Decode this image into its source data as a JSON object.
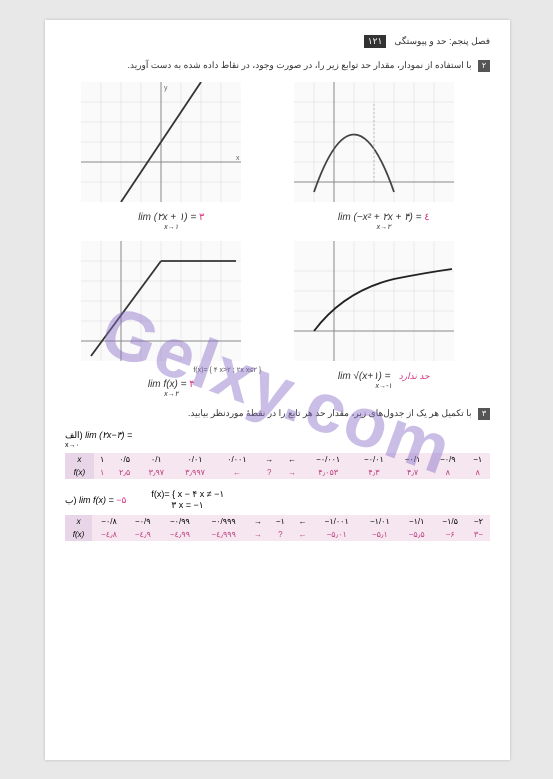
{
  "header": {
    "chapter": "فصل پنجم: حد و پیوستگی",
    "pageNum": "۱۲۱"
  },
  "q2": {
    "num": "۲",
    "text": "با استفاده از نمودار، مقدار حد توابع زیر را، در صورت وجود، در نقاط داده شده به دست آورید."
  },
  "chart1": {
    "formula": "lim (۲x + ۱) =",
    "sub": "x→۱",
    "answer": "۳",
    "xlim": [
      -3,
      3
    ],
    "ylim": [
      -3,
      4
    ],
    "line_color": "#444",
    "grid_color": "#d0d0d0"
  },
  "chart2": {
    "formula": "lim (−x² + ۲x + ۴) =",
    "sub": "x→۲",
    "answer": "٤",
    "xlim": [
      -2,
      5
    ],
    "ylim": [
      -2,
      5
    ],
    "curve_color": "#555",
    "grid_color": "#d0d0d0"
  },
  "chart3": {
    "formula": "lim f(x) =",
    "sub": "x→۲",
    "answer": "۴",
    "note": "f(x)= { ۴  x>۲ ; ۲x  x≤۲ }",
    "xlim": [
      -2,
      5
    ],
    "ylim": [
      -2,
      5
    ],
    "grid_color": "#d0d0d0"
  },
  "chart4": {
    "formula": "lim √(x+۱) =",
    "sub": "x→-۱",
    "answer": "حد ندارد",
    "xlim": [
      -2,
      6
    ],
    "ylim": [
      -1,
      3
    ],
    "curve_color": "#222",
    "grid_color": "#d0d0d0"
  },
  "q3": {
    "num": "۳",
    "text": "با تکمیل هر یک از جدول‌های زیر، مقدار حد هر تابع را در نقطهٔ موردنظر بیابید."
  },
  "table1": {
    "label_formula": "lim (۲x−۳) =",
    "label_sub": "x→۰",
    "label_part": "الف)",
    "row_x": [
      "x",
      "۱",
      "۰/۵",
      "۰/۱",
      "۰/۰۱",
      "۰/۰۰۱",
      "→",
      "←",
      "−۰/۰۰۱",
      "−۰/۰۱",
      "−۰/۱",
      "−۰/۹",
      "−۱"
    ],
    "row_fx": [
      "f(x)",
      "۱",
      "۲٫۵",
      "۳٫۹۷",
      "۳٫۹۹۷",
      "←",
      "?",
      "→",
      "۴٫۰۵۳",
      "۴٫۳",
      "۴٫۷",
      "∧",
      "∧"
    ]
  },
  "table2": {
    "label_formula": "lim f(x) =",
    "label_sub": "x→-۱",
    "label_answer": "−۵",
    "label_part": "ب)",
    "piecewise_top": "x − ۴    x ≠ −۱",
    "piecewise_bot": "۳         x = −۱",
    "row_x": [
      "x",
      "−۰/۸",
      "−۰/۹",
      "−۰/۹۹",
      "−۰/۹۹۹",
      "→",
      "−۱",
      "←",
      "−۱/۰۰۱",
      "−۱/۰۱",
      "−۱/۱",
      "−۱/۵",
      "−۲"
    ],
    "row_fx": [
      "f(x)",
      "−٤٫۸",
      "−٤٫۹",
      "−٤٫۹۹",
      "−٤٫۹۹۹",
      "→",
      "?",
      "←",
      "−۵٫۰۱",
      "−۵٫۱",
      "−۵٫۵",
      "−۶",
      "۳−"
    ]
  },
  "watermark": "Gelxy.com"
}
